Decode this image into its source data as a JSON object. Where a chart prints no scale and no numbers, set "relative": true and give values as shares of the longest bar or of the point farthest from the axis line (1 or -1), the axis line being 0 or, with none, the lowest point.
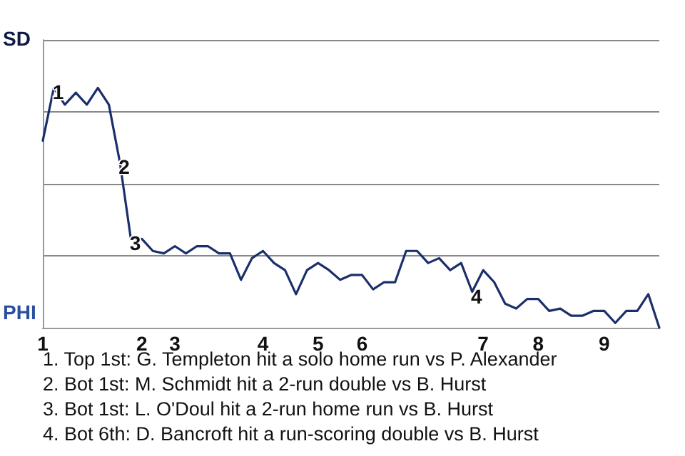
{
  "chart_data": {
    "type": "line",
    "relative": true,
    "categories": [
      "1",
      null,
      null,
      null,
      null,
      null,
      null,
      null,
      null,
      "2",
      null,
      null,
      "3",
      null,
      null,
      null,
      null,
      null,
      null,
      null,
      "4",
      null,
      null,
      null,
      null,
      "5",
      null,
      null,
      null,
      "6",
      null,
      null,
      null,
      null,
      null,
      null,
      null,
      null,
      null,
      null,
      "7",
      null,
      null,
      null,
      null,
      "8",
      null,
      null,
      null,
      null,
      null,
      "9",
      null,
      null,
      null,
      null,
      null
    ],
    "series": [
      {
        "color": "#1b2f6b",
        "values": [
          0.78,
          1,
          0.93,
          0.98,
          0.93,
          1,
          0.93,
          0.69,
          0.37,
          0.37,
          0.32,
          0.31,
          0.34,
          0.31,
          0.34,
          0.34,
          0.31,
          0.31,
          0.2,
          0.29,
          0.32,
          0.27,
          0.24,
          0.14,
          0.24,
          0.27,
          0.24,
          0.2,
          0.22,
          0.22,
          0.16,
          0.19,
          0.19,
          0.32,
          0.32,
          0.27,
          0.29,
          0.24,
          0.27,
          0.15,
          0.24,
          0.19,
          0.1,
          0.08,
          0.12,
          0.12,
          0.07,
          0.08,
          0.05,
          0.05,
          0.07,
          0.07,
          0.02,
          0.07,
          0.07,
          0.14,
          0
        ]
      }
    ],
    "grid": "y",
    "marker": "none",
    "line_style": "solid",
    "annotations": [
      {
        "text": "1",
        "y": 1
      },
      {
        "text": "2",
        "y": 0.69
      },
      {
        "text": "3",
        "y": 0.37
      },
      {
        "text": "4",
        "y": 0.15
      },
      "SD",
      "PHI",
      "1. Top 1st: G. Templeton hit a solo home run vs P. Alexander",
      "2. Bot 1st: M. Schmidt hit a 2-run double vs B. Hurst",
      "3. Bot 1st: L. O'Doul hit a 2-run home run vs B. Hurst",
      "4. Bot 6th: D. Bancroft hit a run-scoring double vs B. Hurst"
    ]
  }
}
